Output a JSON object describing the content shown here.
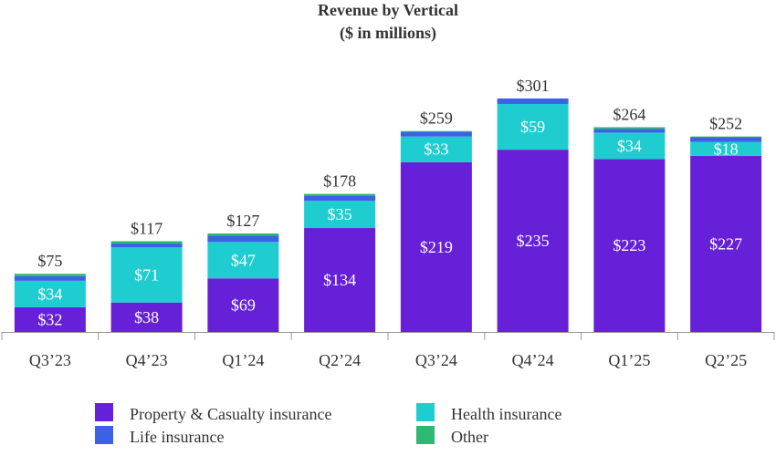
{
  "chart_data": {
    "type": "bar",
    "stacked": true,
    "title": "Revenue by Vertical",
    "subtitle": "($ in millions)",
    "xlabel": "",
    "ylabel": "",
    "categories": [
      "Q3’23",
      "Q4’23",
      "Q1’24",
      "Q2’24",
      "Q3’24",
      "Q4’24",
      "Q1’25",
      "Q2’25"
    ],
    "series": [
      {
        "name": "Property & Casualty insurance",
        "color": "#6620d8",
        "values": [
          32,
          38,
          69,
          134,
          219,
          235,
          223,
          227
        ],
        "labels": [
          "$32",
          "$38",
          "$69",
          "$134",
          "$219",
          "$235",
          "$223",
          "$227"
        ]
      },
      {
        "name": "Health insurance",
        "color": "#1fcdd1",
        "values": [
          34,
          71,
          47,
          35,
          33,
          59,
          34,
          18
        ],
        "labels": [
          "$34",
          "$71",
          "$47",
          "$35",
          "$33",
          "$59",
          "$34",
          "$18"
        ]
      },
      {
        "name": "Life insurance",
        "color": "#3b62e6",
        "values": [
          6,
          5,
          8,
          7,
          6,
          7,
          5,
          6
        ]
      },
      {
        "name": "Other",
        "color": "#2eb872",
        "values": [
          3,
          3,
          3,
          2,
          1,
          0,
          2,
          1
        ]
      }
    ],
    "totals": [
      "$75",
      "$117",
      "$127",
      "$178",
      "$259",
      "$301",
      "$264",
      "$252"
    ],
    "ylim": [
      0,
      301
    ],
    "grid": false,
    "legend_position": "bottom"
  }
}
